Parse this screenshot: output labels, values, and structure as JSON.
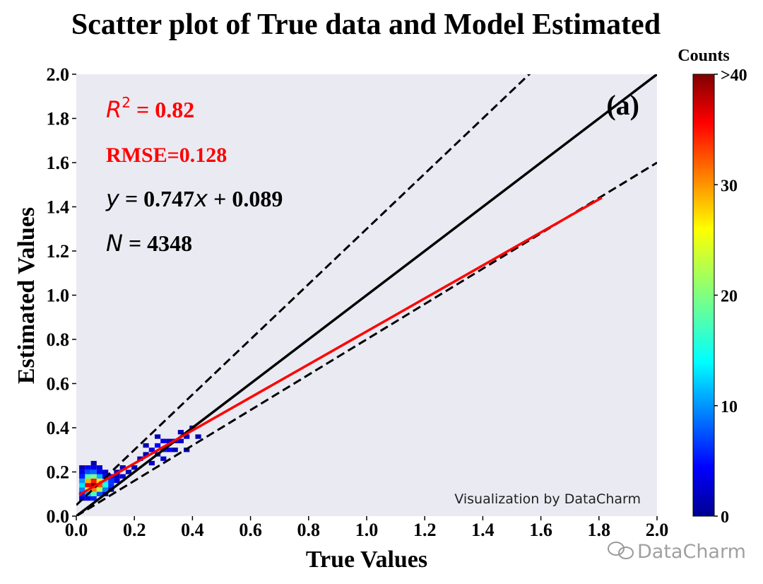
{
  "chart_data": {
    "type": "heatmap",
    "title": "Scatter plot of True data and Model Estimated",
    "xlabel": "True Values",
    "ylabel": "Estimated Values",
    "xlim": [
      0.0,
      2.0
    ],
    "ylim": [
      0.0,
      2.0
    ],
    "x_ticks": [
      "0.0",
      "0.2",
      "0.4",
      "0.6",
      "0.8",
      "1.0",
      "1.2",
      "1.4",
      "1.6",
      "1.8",
      "2.0"
    ],
    "y_ticks": [
      "0.0",
      "0.2",
      "0.4",
      "0.6",
      "0.8",
      "1.0",
      "1.2",
      "1.4",
      "1.6",
      "1.8",
      "2.0"
    ],
    "background_color": "#eaeaf2",
    "grid": false,
    "panel_label": "(a)",
    "stats": {
      "r2_label": "R",
      "r2_sup": "2",
      "r2_value": " = 0.82",
      "rmse": "RMSE=0.128",
      "fit_y": "y",
      "fit_mid": " = 0.747",
      "fit_x": "x",
      "fit_end": " + 0.089",
      "n_label": "N",
      "n_value": " = 4348"
    },
    "fit_line": {
      "slope": 0.747,
      "intercept": 0.089,
      "x_range": [
        0.01,
        1.81
      ],
      "color": "#ff0000"
    },
    "one_to_one_line": {
      "slope": 1.0,
      "intercept": 0.0,
      "color": "#000000"
    },
    "bounds_lines": [
      {
        "slope": 1.25,
        "intercept": 0.05,
        "style": "dashed",
        "color": "#000000"
      },
      {
        "slope": 0.8,
        "intercept": 0.0,
        "style": "dashed",
        "color": "#000000"
      }
    ],
    "bin_size": 0.02,
    "bins": [
      [
        0.06,
        0.14,
        40
      ],
      [
        0.04,
        0.14,
        36
      ],
      [
        0.06,
        0.16,
        34
      ],
      [
        0.08,
        0.14,
        32
      ],
      [
        0.06,
        0.12,
        30
      ],
      [
        0.04,
        0.16,
        28
      ],
      [
        0.08,
        0.16,
        26
      ],
      [
        0.04,
        0.12,
        24
      ],
      [
        0.08,
        0.12,
        22
      ],
      [
        0.06,
        0.18,
        20
      ],
      [
        0.04,
        0.18,
        18
      ],
      [
        0.06,
        0.1,
        18
      ],
      [
        0.1,
        0.14,
        16
      ],
      [
        0.1,
        0.16,
        14
      ],
      [
        0.02,
        0.14,
        14
      ],
      [
        0.04,
        0.1,
        12
      ],
      [
        0.08,
        0.18,
        12
      ],
      [
        0.02,
        0.16,
        11
      ],
      [
        0.02,
        0.12,
        10
      ],
      [
        0.1,
        0.12,
        10
      ],
      [
        0.06,
        0.2,
        9
      ],
      [
        0.04,
        0.2,
        8
      ],
      [
        0.08,
        0.1,
        8
      ],
      [
        0.12,
        0.16,
        7
      ],
      [
        0.12,
        0.14,
        7
      ],
      [
        0.02,
        0.18,
        6
      ],
      [
        0.02,
        0.1,
        6
      ],
      [
        0.06,
        0.08,
        6
      ],
      [
        0.1,
        0.18,
        5
      ],
      [
        0.08,
        0.2,
        5
      ],
      [
        0.04,
        0.22,
        5
      ],
      [
        0.06,
        0.22,
        4
      ],
      [
        0.12,
        0.18,
        4
      ],
      [
        0.14,
        0.16,
        4
      ],
      [
        0.02,
        0.2,
        4
      ],
      [
        0.04,
        0.08,
        4
      ],
      [
        0.1,
        0.1,
        4
      ],
      [
        0.02,
        0.08,
        3
      ],
      [
        0.12,
        0.12,
        3
      ],
      [
        0.14,
        0.18,
        3
      ],
      [
        0.16,
        0.18,
        3
      ],
      [
        0.1,
        0.2,
        3
      ],
      [
        0.08,
        0.22,
        3
      ],
      [
        0.02,
        0.22,
        2
      ],
      [
        0.06,
        0.24,
        2
      ],
      [
        0.3,
        0.3,
        6
      ],
      [
        0.28,
        0.32,
        5
      ],
      [
        0.32,
        0.3,
        5
      ],
      [
        0.3,
        0.34,
        4
      ],
      [
        0.26,
        0.3,
        4
      ],
      [
        0.28,
        0.28,
        4
      ],
      [
        0.34,
        0.34,
        4
      ],
      [
        0.26,
        0.24,
        3
      ],
      [
        0.3,
        0.26,
        3
      ],
      [
        0.32,
        0.34,
        3
      ],
      [
        0.36,
        0.34,
        3
      ],
      [
        0.38,
        0.36,
        3
      ],
      [
        0.24,
        0.28,
        2
      ],
      [
        0.22,
        0.26,
        2
      ],
      [
        0.34,
        0.3,
        2
      ],
      [
        0.36,
        0.38,
        2
      ],
      [
        0.4,
        0.4,
        2
      ],
      [
        0.42,
        0.36,
        2
      ],
      [
        0.38,
        0.3,
        2
      ],
      [
        0.28,
        0.36,
        2
      ],
      [
        0.2,
        0.22,
        2
      ],
      [
        0.18,
        0.2,
        2
      ],
      [
        0.16,
        0.22,
        2
      ],
      [
        0.14,
        0.2,
        2
      ],
      [
        0.24,
        0.32,
        2
      ]
    ],
    "colorbar": {
      "label": "Counts",
      "min": 0,
      "max": 40,
      "ticks": [
        "0",
        "10",
        "20",
        "30",
        ">40"
      ],
      "colormap": "jet"
    },
    "watermark": "Visualization by DataCharm",
    "footer_logo": "DataCharm"
  }
}
